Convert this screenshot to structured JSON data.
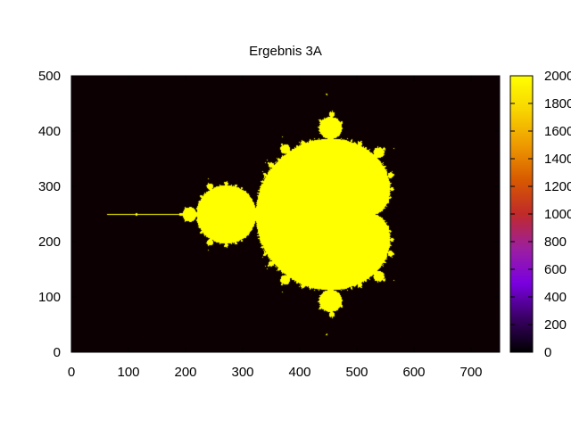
{
  "chart_data": {
    "type": "heatmap",
    "title": "Ergebnis 3A",
    "xlabel": "",
    "ylabel": "",
    "xlim": [
      0,
      750
    ],
    "ylim": [
      0,
      500
    ],
    "x_ticks": [
      0,
      100,
      200,
      300,
      400,
      500,
      600,
      700
    ],
    "y_ticks": [
      0,
      100,
      200,
      300,
      400,
      500
    ],
    "colorbar": {
      "min": 0,
      "max": 2000,
      "ticks": [
        0,
        200,
        400,
        600,
        800,
        1000,
        1200,
        1400,
        1600,
        1800,
        2000
      ],
      "palette": [
        "#000000",
        "#3a0066",
        "#7a00e0",
        "#9c1fa0",
        "#c02a2a",
        "#d85a00",
        "#ee9a00",
        "#f8d400",
        "#ffff00"
      ]
    },
    "background_value": 0,
    "set_value": 2000,
    "colors": {
      "background": "#0d0003",
      "set": "#ffff00"
    },
    "grid": false,
    "description_shape": "Mandelbrot set rendered as iteration count over pixel grid"
  }
}
